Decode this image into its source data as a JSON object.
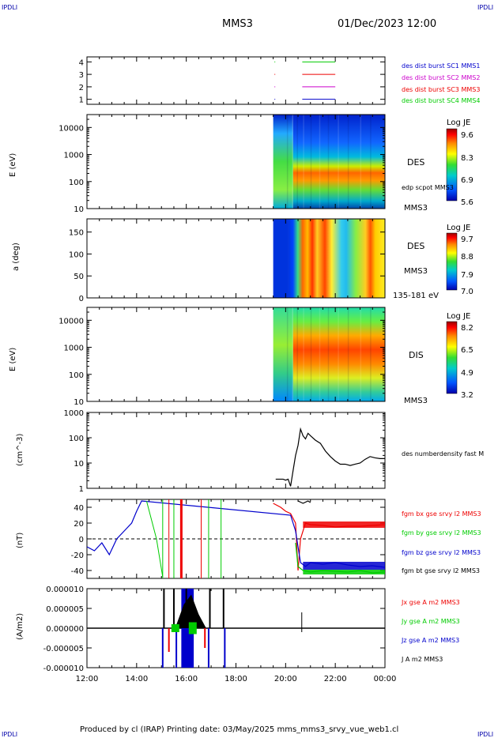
{
  "header": {
    "corner_left": "IPDLI",
    "corner_right": "IPDLI",
    "spacecraft": "MMS3",
    "datetime": "01/Dec/2023 12:00"
  },
  "footer": {
    "text": "Produced by cl (IRAP)   Printing date: 03/May/2025   mms_mms3_srvy_vue_web1.cl",
    "corner_left": "IPDLI",
    "corner_right": "IPDLI"
  },
  "time_axis": {
    "ticks": [
      "12:00",
      "14:00",
      "16:00",
      "18:00",
      "20:00",
      "22:00",
      "00:00"
    ],
    "range_hours": [
      12,
      24
    ]
  },
  "colors": {
    "blue": "#0000cc",
    "magenta": "#cc00cc",
    "red": "#ee0000",
    "green": "#00cc00",
    "black": "#000000"
  },
  "chart_data": [
    {
      "type": "line",
      "panel": "burst",
      "yticks": [
        "1",
        "2",
        "3",
        "4"
      ],
      "ylim": [
        0.6,
        4.4
      ],
      "series": [
        {
          "name": "des dist burst SC1 MMS1",
          "color": "#0000cc",
          "y": 1,
          "x": [
            20.67,
            22.0
          ]
        },
        {
          "name": "des dist burst SC2 MMS2",
          "color": "#cc00cc",
          "y": 2,
          "x": [
            20.67,
            22.0
          ]
        },
        {
          "name": "des dist burst SC3 MMS3",
          "color": "#ee0000",
          "y": 3,
          "x": [
            20.67,
            22.0
          ]
        },
        {
          "name": "des dist burst SC4 MMS4",
          "color": "#00cc00",
          "y": 4,
          "x": [
            20.67,
            22.0
          ]
        }
      ]
    },
    {
      "type": "heatmap",
      "panel": "des_energy",
      "ylabel": "E (eV)",
      "yscale": "log",
      "yticks": [
        "10",
        "100",
        "1000",
        "10000"
      ],
      "ylim": [
        10,
        30000
      ],
      "label": "DES",
      "overlay_label": "edp scpot MMS3",
      "sc_label": "MMS3",
      "colorbar": {
        "title": "Log JE",
        "ticks": [
          "9.6",
          "8.3",
          "6.9",
          "5.6"
        ],
        "range": [
          5.6,
          9.6
        ]
      },
      "data_start_hour": 19.5,
      "peak_energy_ev": 100
    },
    {
      "type": "heatmap",
      "panel": "des_pitch",
      "ylabel": "a (deg)",
      "yticks": [
        "0",
        "50",
        "100",
        "150"
      ],
      "ylim": [
        0,
        180
      ],
      "label": "DES",
      "sc_label": "MMS3",
      "energy_label": "135-181 eV",
      "colorbar": {
        "title": "Log JE",
        "ticks": [
          "9.7",
          "8.8",
          "7.9",
          "7.0"
        ],
        "range": [
          7.0,
          9.7
        ]
      },
      "data_start_hour": 19.5
    },
    {
      "type": "heatmap",
      "panel": "dis_energy",
      "ylabel": "E (eV)",
      "yscale": "log",
      "yticks": [
        "10",
        "100",
        "1000",
        "10000"
      ],
      "ylim": [
        10,
        30000
      ],
      "label": "DIS",
      "sc_label": "MMS3",
      "colorbar": {
        "title": "Log JE",
        "ticks": [
          "8.2",
          "6.5",
          "4.9",
          "3.2"
        ],
        "range": [
          3.2,
          8.2
        ]
      },
      "data_start_hour": 19.5,
      "peak_energy_ev": 700
    },
    {
      "type": "line",
      "panel": "density",
      "ylabel": "(cm^-3)",
      "yscale": "log",
      "yticks": [
        "1",
        "10",
        "100",
        "1000"
      ],
      "ylim": [
        1,
        1000
      ],
      "series": [
        {
          "name": "des numberdensity fast M",
          "color": "#000000",
          "x": [
            19.6,
            19.9,
            20.0,
            20.1,
            20.2,
            20.3,
            20.4,
            20.5,
            20.6,
            20.7,
            20.8,
            20.9,
            21.0,
            21.2,
            21.4,
            21.6,
            21.8,
            22.0,
            22.2,
            22.4,
            22.6,
            22.8,
            23.0,
            23.2,
            23.4,
            23.6,
            23.8,
            24.0
          ],
          "y": [
            2.3,
            2.3,
            2.1,
            2.3,
            1.2,
            5,
            20,
            50,
            220,
            120,
            90,
            150,
            120,
            80,
            60,
            30,
            18,
            12,
            9,
            9,
            8,
            9,
            10,
            14,
            18,
            16,
            15,
            15
          ]
        }
      ]
    },
    {
      "type": "line",
      "panel": "magnetic_field",
      "ylabel": "(nT)",
      "yticks": [
        "-40",
        "-20",
        "0",
        "20",
        "40"
      ],
      "ylim": [
        -50,
        50
      ],
      "series": [
        {
          "name": "fgm bx gse srvy l2 MMS3",
          "color": "#ee0000",
          "x": [
            19.5,
            19.8,
            20.0,
            20.2,
            20.4,
            20.5,
            20.6,
            20.8,
            21.0,
            21.5,
            22.0,
            22.5,
            23.0,
            23.5,
            24.0
          ],
          "y": [
            45,
            40,
            35,
            32,
            20,
            -40,
            0,
            20,
            18,
            17,
            15,
            16,
            16,
            17,
            18
          ]
        },
        {
          "name": "fgm by gse srvy l2 MMS3",
          "color": "#00cc00",
          "x": [
            20.4,
            20.5,
            20.7,
            21.0,
            21.5,
            22.0,
            22.5,
            23.0,
            23.5,
            24.0
          ],
          "y": [
            -5,
            -35,
            -40,
            -42,
            -40,
            -41,
            -42,
            -40,
            -43,
            -42
          ]
        },
        {
          "name": "fgm bz gse srvy l2 MMS3",
          "color": "#0000cc",
          "x": [
            12.0,
            12.3,
            12.6,
            12.9,
            13.2,
            13.5,
            13.8,
            14.0,
            14.2,
            20.2,
            20.4,
            20.6,
            20.8,
            21.0,
            21.5,
            22.0,
            22.5,
            23.0,
            23.5,
            24.0
          ],
          "y": [
            -10,
            -15,
            -5,
            -20,
            0,
            10,
            20,
            35,
            48,
            30,
            10,
            -30,
            -35,
            -30,
            -32,
            -30,
            -33,
            -35,
            -34,
            -36
          ]
        },
        {
          "name": "fgm bt gse srvy l2 MMS3",
          "color": "#000000",
          "x": [
            20.5,
            20.7,
            20.9,
            21.0
          ],
          "y": [
            48,
            45,
            48,
            46
          ]
        }
      ]
    },
    {
      "type": "line",
      "panel": "current_density",
      "ylabel": "(A/m2)",
      "yticks": [
        "0.000010",
        "0.000005",
        "0.000000",
        "-0.000005",
        "-0.000010"
      ],
      "ylim": [
        -1e-05,
        1e-05
      ],
      "series": [
        {
          "name": "Jx gse A m2 MMS3",
          "color": "#ee0000"
        },
        {
          "name": "Jy gse A m2 MMS3",
          "color": "#00cc00"
        },
        {
          "name": "Jz gse A m2 MMS3",
          "color": "#0000cc"
        },
        {
          "name": "J A m2 MMS3",
          "color": "#000000"
        }
      ]
    }
  ]
}
